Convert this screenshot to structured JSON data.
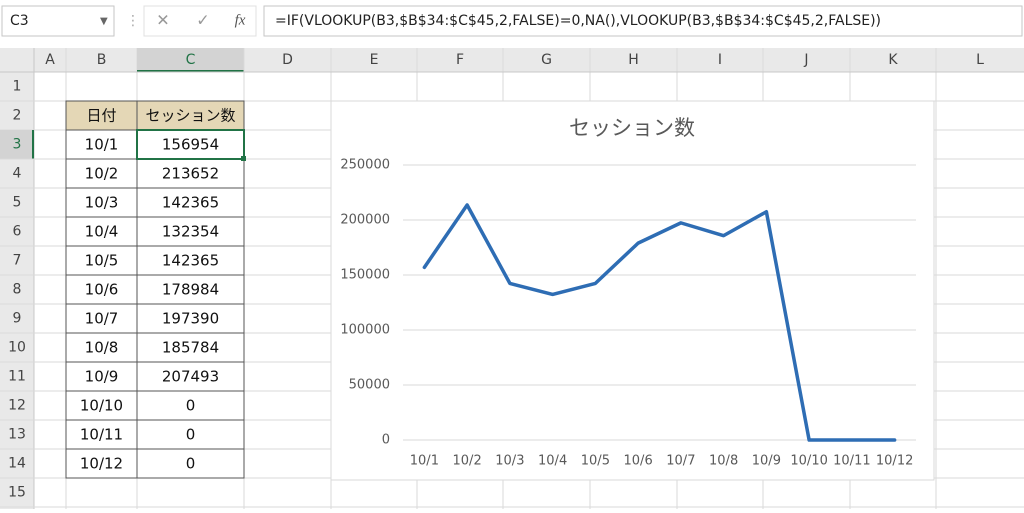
{
  "name_box": "C3",
  "formula_icons": [
    "✕",
    "✓",
    "fx"
  ],
  "formula": "=IF(VLOOKUP(B3,$B$34:$C$45,2,FALSE)=0,NA(),VLOOKUP(B3,$B$34:$C$45,2,FALSE))",
  "columns": [
    "A",
    "B",
    "C",
    "D",
    "E",
    "F",
    "G",
    "H",
    "I",
    "J",
    "K",
    "L"
  ],
  "rows": [
    1,
    2,
    3,
    4,
    5,
    6,
    7,
    8,
    9,
    10,
    11,
    12,
    13,
    14,
    15
  ],
  "table": {
    "headers": [
      "日付",
      "セッション数"
    ]
  },
  "chart_data": {
    "type": "line",
    "title": "セッション数",
    "categories": [
      "10/1",
      "10/2",
      "10/3",
      "10/4",
      "10/5",
      "10/6",
      "10/7",
      "10/8",
      "10/9",
      "10/10",
      "10/11",
      "10/12"
    ],
    "values": [
      156954,
      213652,
      142365,
      132354,
      142365,
      178984,
      197390,
      185784,
      207493,
      0,
      0,
      0
    ],
    "color": "#2e6db4",
    "ylim": [
      0,
      250000
    ],
    "yticks": [
      0,
      50000,
      100000,
      150000,
      200000,
      250000
    ],
    "grid": true
  }
}
